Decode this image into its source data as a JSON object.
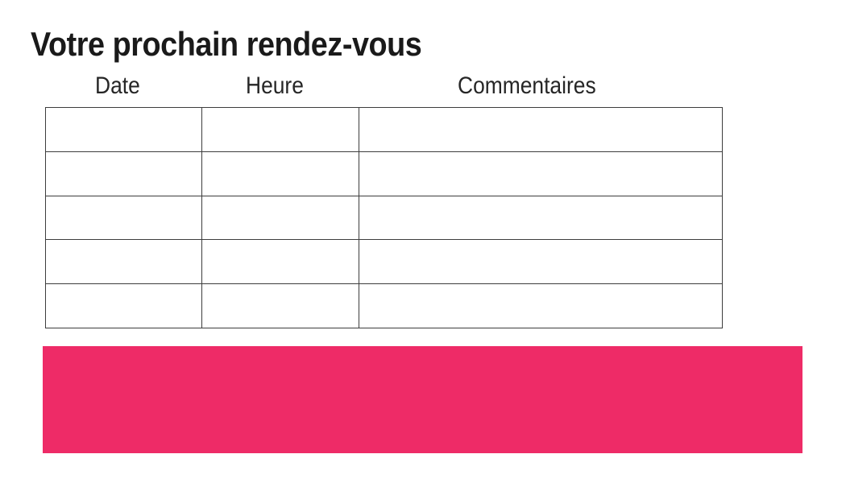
{
  "page": {
    "title": "Votre prochain rendez-vous"
  },
  "table": {
    "headers": [
      "Date",
      "Heure",
      "Commentaires"
    ],
    "rows": [
      [
        "",
        "",
        ""
      ],
      [
        "",
        "",
        ""
      ],
      [
        "",
        "",
        ""
      ],
      [
        "",
        "",
        ""
      ],
      [
        "",
        "",
        ""
      ]
    ]
  },
  "colors": {
    "accent_pink": "#EE2B67",
    "table_border": "#3D3D3D",
    "title_text": "#1A1A1A",
    "header_text": "#262626",
    "background": "#FFFFFF"
  }
}
